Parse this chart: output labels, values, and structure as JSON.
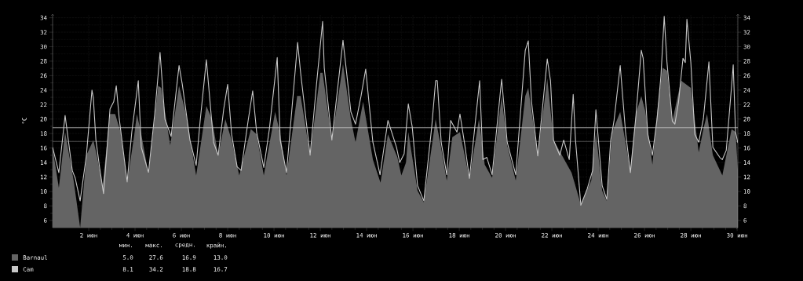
{
  "chart_data": {
    "type": "area",
    "ylabel": "°C",
    "xlim": [
      0.44,
      30.03
    ],
    "ylim": [
      5,
      34.5
    ],
    "xticks": [
      {
        "value": 2,
        "label": "2 июн"
      },
      {
        "value": 4,
        "label": "4 июн"
      },
      {
        "value": 6,
        "label": "6 июн"
      },
      {
        "value": 8,
        "label": "8 июн"
      },
      {
        "value": 10,
        "label": "10 июн"
      },
      {
        "value": 12,
        "label": "12 июн"
      },
      {
        "value": 14,
        "label": "14 июн"
      },
      {
        "value": 16,
        "label": "16 июн"
      },
      {
        "value": 18,
        "label": "18 июн"
      },
      {
        "value": 20,
        "label": "20 июн"
      },
      {
        "value": 22,
        "label": "22 июн"
      },
      {
        "value": 24,
        "label": "24 июн"
      },
      {
        "value": 26,
        "label": "26 июн"
      },
      {
        "value": 28,
        "label": "28 июн"
      },
      {
        "value": 30,
        "label": "30 июн"
      }
    ],
    "yticks": [
      6,
      8,
      10,
      12,
      14,
      16,
      18,
      20,
      22,
      24,
      26,
      28,
      30,
      32,
      34
    ],
    "y2lim": [
      5,
      34.5
    ],
    "y2ticks": [
      6,
      8,
      10,
      12,
      14,
      16,
      18,
      20,
      22,
      24,
      26,
      28,
      30,
      32,
      34
    ],
    "grid": true,
    "legend": "bottom",
    "ref_lines": [
      {
        "axis": "y",
        "value": 18.8,
        "color": "#c8c8c8"
      },
      {
        "axis": "y",
        "value": 16.9,
        "color": "#646464"
      }
    ],
    "annotations": [
      "мин.",
      "макс.",
      "средн.",
      "крайн.",
      "5.0",
      "27.6",
      "16.9",
      "13.0",
      "8.1",
      "34.2",
      "18.8",
      "16.7"
    ],
    "series": [
      {
        "name": "Barnaul",
        "color": "#646464",
        "x": [
          0.44,
          0.71,
          0.98,
          1.35,
          1.63,
          1.9,
          2.2,
          2.35,
          2.6,
          2.92,
          3.14,
          3.38,
          3.66,
          3.97,
          4.08,
          4.27,
          4.58,
          5.0,
          5.13,
          5.52,
          5.9,
          6.2,
          6.64,
          7.08,
          7.32,
          7.59,
          7.9,
          8.17,
          8.5,
          9.0,
          9.25,
          9.56,
          10.05,
          10.27,
          10.54,
          11.0,
          11.15,
          11.56,
          12.0,
          12.1,
          12.5,
          12.98,
          13.32,
          13.52,
          13.85,
          14.27,
          14.6,
          14.92,
          15.33,
          15.5,
          15.7,
          15.8,
          16.2,
          16.47,
          16.98,
          17.22,
          17.46,
          17.7,
          18.03,
          18.44,
          18.85,
          19.1,
          19.42,
          19.83,
          20.07,
          20.44,
          20.85,
          20.98,
          21.39,
          21.8,
          22.07,
          22.85,
          23.25,
          23.7,
          23.9,
          24.17,
          24.37,
          24.6,
          24.95,
          25.39,
          25.63,
          25.86,
          26.04,
          26.34,
          26.54,
          26.78,
          26.97,
          27.2,
          27.58,
          28.0,
          28.34,
          28.54,
          28.7,
          28.95,
          29.36,
          29.76,
          29.93,
          30.03
        ],
        "values": [
          16,
          10.5,
          18.2,
          11.5,
          5.0,
          15,
          17.1,
          15,
          10.8,
          20.7,
          20.7,
          18.2,
          11.2,
          17.9,
          20.7,
          17.9,
          12.4,
          24.6,
          24.3,
          16.4,
          24.6,
          20.7,
          12.2,
          21.8,
          20,
          15,
          20,
          17.1,
          12.2,
          18.6,
          17.9,
          12.2,
          21,
          17.9,
          12.2,
          23.2,
          23.2,
          15,
          26.4,
          26.4,
          17.1,
          27.6,
          20,
          16.8,
          22.4,
          14.4,
          11.2,
          17.9,
          14.7,
          12.2,
          14,
          18.2,
          10.1,
          8.5,
          20,
          16,
          11.5,
          17.5,
          18.2,
          11.8,
          20,
          13.7,
          11.9,
          23.2,
          16.4,
          11.5,
          23.2,
          24.3,
          15,
          25.6,
          17.1,
          12.6,
          8.2,
          11.5,
          18.2,
          10.1,
          8.7,
          18.2,
          21,
          12.9,
          20.7,
          23.2,
          21,
          13.7,
          20.7,
          27.1,
          26.7,
          19.7,
          25.3,
          24.3,
          15.4,
          18.6,
          20.7,
          15,
          12.2,
          18.6,
          18.2,
          13.0
        ]
      },
      {
        "name": "Cam",
        "type": "line",
        "color": "#c8c8c8",
        "x": [
          0.44,
          0.71,
          0.98,
          1.29,
          1.42,
          1.63,
          1.9,
          2.14,
          2.2,
          2.31,
          2.47,
          2.64,
          2.92,
          3.08,
          3.19,
          3.32,
          3.66,
          3.86,
          4.14,
          4.27,
          4.58,
          4.85,
          5.08,
          5.29,
          5.56,
          5.9,
          6.04,
          6.37,
          6.64,
          6.81,
          7.08,
          7.39,
          7.59,
          7.83,
          8.0,
          8.17,
          8.41,
          8.58,
          8.88,
          9.08,
          9.25,
          9.56,
          9.8,
          10.14,
          10.27,
          10.54,
          11.02,
          11.15,
          11.56,
          11.83,
          12.1,
          12.17,
          12.5,
          12.98,
          13.15,
          13.32,
          13.52,
          13.76,
          13.96,
          14.27,
          14.58,
          14.92,
          15.29,
          15.43,
          15.62,
          15.8,
          15.97,
          16.2,
          16.47,
          16.81,
          16.98,
          17.05,
          17.22,
          17.46,
          17.63,
          17.9,
          18.03,
          18.24,
          18.44,
          18.88,
          19.02,
          19.19,
          19.42,
          19.83,
          20.07,
          20.44,
          20.85,
          20.98,
          21.12,
          21.39,
          21.8,
          21.94,
          22.07,
          22.34,
          22.51,
          22.75,
          22.92,
          23.02,
          23.25,
          23.53,
          23.76,
          23.9,
          24.17,
          24.37,
          24.54,
          24.68,
          24.95,
          25.18,
          25.39,
          25.63,
          25.86,
          25.94,
          26.14,
          26.34,
          26.54,
          26.71,
          26.85,
          26.97,
          27.2,
          27.31,
          27.47,
          27.66,
          27.76,
          27.83,
          28.0,
          28.17,
          28.34,
          28.54,
          28.78,
          28.95,
          29.25,
          29.36,
          29.53,
          29.76,
          29.83,
          29.93,
          30.03
        ],
        "values": [
          16.1,
          12.6,
          20.5,
          12.9,
          11.8,
          8.7,
          15,
          24.0,
          22.9,
          17.1,
          13.3,
          9.7,
          21.4,
          22.4,
          24.6,
          20,
          11.3,
          18.2,
          25.3,
          16.1,
          12.6,
          20.7,
          29.2,
          20,
          17.6,
          27.4,
          24.8,
          17.1,
          13.6,
          19.7,
          28.2,
          16.8,
          15,
          21.4,
          24.8,
          17.9,
          13.4,
          12.9,
          19.7,
          23.9,
          18.2,
          13.3,
          18.6,
          28.5,
          17.1,
          12.6,
          30.6,
          26.4,
          15,
          24.6,
          33.5,
          27.1,
          17.1,
          30.9,
          26,
          21,
          19.3,
          23.2,
          26.9,
          16.8,
          12.3,
          19.8,
          16.1,
          14,
          15.2,
          22.1,
          18.9,
          10.8,
          8.7,
          18.9,
          25.3,
          25.3,
          16.8,
          12.3,
          19.8,
          18.2,
          20.7,
          16.4,
          11.8,
          25.3,
          14.4,
          14.7,
          12.3,
          25.5,
          16.8,
          12.3,
          29.5,
          30.8,
          22.4,
          14.9,
          28.3,
          25.3,
          17.1,
          15,
          17.1,
          14.4,
          23.4,
          17.1,
          8.1,
          10.4,
          12.9,
          21.3,
          10.8,
          8.9,
          17.1,
          19.7,
          27.4,
          18.2,
          12.6,
          20.5,
          29.5,
          28.4,
          17.9,
          15,
          20,
          26,
          34.2,
          27.8,
          19.7,
          19.3,
          22.4,
          28.4,
          27.8,
          33.8,
          27.8,
          17.9,
          16.8,
          20,
          27.9,
          16.1,
          14.7,
          14.4,
          15.7,
          24.6,
          27.5,
          18.2,
          16.7
        ]
      }
    ]
  }
}
